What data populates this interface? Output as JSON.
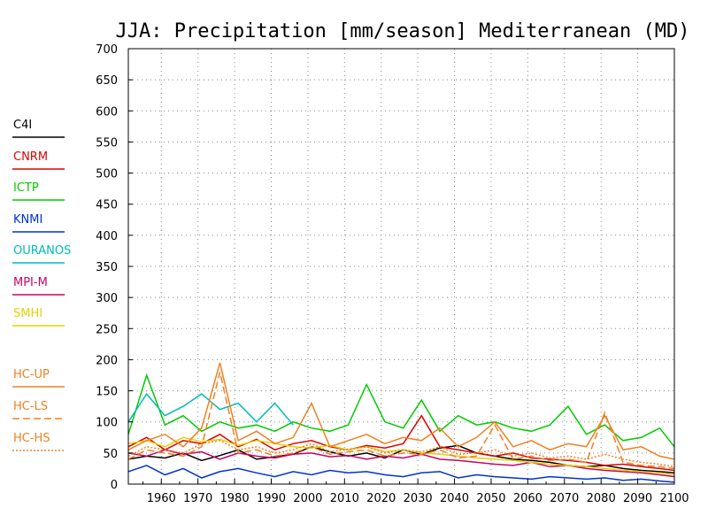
{
  "chart_data": {
    "type": "line",
    "title": "JJA: Precipitation [mm/season] Mediterranean (MD)",
    "xlabel": "",
    "ylabel": "",
    "xlim": [
      1951,
      2100
    ],
    "ylim": [
      0,
      700
    ],
    "x_ticks": [
      1960,
      1970,
      1980,
      1990,
      2000,
      2010,
      2020,
      2030,
      2040,
      2050,
      2060,
      2070,
      2080,
      2090,
      2100
    ],
    "y_ticks": [
      0,
      50,
      100,
      150,
      200,
      250,
      300,
      350,
      400,
      450,
      500,
      550,
      600,
      650,
      700
    ],
    "grid": true,
    "legend_position": "left",
    "series": [
      {
        "name": "C4I",
        "color": "#000000",
        "dash": "solid",
        "x": [
          1951,
          1956,
          1961,
          1966,
          1971,
          1976,
          1981,
          1986,
          1991,
          1996,
          2001,
          2006,
          2011,
          2016,
          2021,
          2026,
          2031,
          2036,
          2041,
          2046,
          2051,
          2056,
          2061,
          2066,
          2071,
          2076,
          2081,
          2086,
          2091,
          2096,
          2100
        ],
        "values": [
          40,
          45,
          42,
          50,
          38,
          46,
          55,
          40,
          44,
          48,
          60,
          52,
          45,
          50,
          42,
          55,
          48,
          58,
          62,
          50,
          45,
          40,
          38,
          35,
          30,
          28,
          30,
          25,
          22,
          20,
          18
        ]
      },
      {
        "name": "CNRM",
        "color": "#e00000",
        "dash": "solid",
        "x": [
          1951,
          1956,
          1961,
          1966,
          1971,
          1976,
          1981,
          1986,
          1991,
          1996,
          2001,
          2006,
          2011,
          2016,
          2021,
          2026,
          2031,
          2036,
          2041,
          2046,
          2051,
          2056,
          2061,
          2066,
          2071,
          2076,
          2081,
          2086,
          2091,
          2096,
          2100
        ],
        "values": [
          60,
          75,
          55,
          70,
          65,
          80,
          60,
          72,
          55,
          65,
          70,
          60,
          55,
          62,
          58,
          65,
          110,
          60,
          55,
          50,
          45,
          50,
          42,
          40,
          38,
          35,
          30,
          32,
          28,
          25,
          22
        ]
      },
      {
        "name": "ICTP",
        "color": "#00cc00",
        "dash": "solid",
        "x": [
          1951,
          1956,
          1961,
          1966,
          1971,
          1976,
          1981,
          1986,
          1991,
          1996,
          2001,
          2006,
          2011,
          2016,
          2021,
          2026,
          2031,
          2036,
          2041,
          2046,
          2051,
          2056,
          2061,
          2066,
          2071,
          2076,
          2081,
          2086,
          2091,
          2096,
          2100
        ],
        "values": [
          80,
          175,
          95,
          110,
          85,
          100,
          90,
          95,
          85,
          100,
          90,
          85,
          95,
          160,
          100,
          90,
          135,
          85,
          110,
          95,
          100,
          90,
          85,
          95,
          125,
          80,
          95,
          70,
          75,
          90,
          60
        ]
      },
      {
        "name": "KNMI",
        "color": "#0033cc",
        "dash": "solid",
        "x": [
          1951,
          1956,
          1961,
          1966,
          1971,
          1976,
          1981,
          1986,
          1991,
          1996,
          2001,
          2006,
          2011,
          2016,
          2021,
          2026,
          2031,
          2036,
          2041,
          2046,
          2051,
          2056,
          2061,
          2066,
          2071,
          2076,
          2081,
          2086,
          2091,
          2096,
          2100
        ],
        "values": [
          20,
          30,
          15,
          25,
          10,
          20,
          25,
          18,
          12,
          20,
          15,
          22,
          18,
          20,
          15,
          12,
          18,
          20,
          10,
          15,
          12,
          10,
          8,
          12,
          10,
          8,
          10,
          6,
          8,
          5,
          3
        ]
      },
      {
        "name": "OURANOS",
        "color": "#00bbbb",
        "dash": "solid",
        "x": [
          1951,
          1956,
          1961,
          1966,
          1971,
          1976,
          1981,
          1986,
          1991,
          1996
        ],
        "values": [
          100,
          145,
          110,
          125,
          145,
          120,
          130,
          100,
          130,
          95
        ]
      },
      {
        "name": "MPI-M",
        "color": "#cc0066",
        "dash": "solid",
        "x": [
          1951,
          1956,
          1961,
          1966,
          1971,
          1976,
          1981,
          1986,
          1991,
          1996,
          2001,
          2006,
          2011,
          2016,
          2021,
          2026,
          2031,
          2036,
          2041,
          2046,
          2051,
          2056,
          2061,
          2066,
          2071,
          2076,
          2081,
          2086,
          2091,
          2096,
          2100
        ],
        "values": [
          50,
          45,
          55,
          48,
          52,
          40,
          50,
          45,
          42,
          48,
          50,
          44,
          46,
          40,
          45,
          42,
          48,
          40,
          38,
          35,
          32,
          30,
          35,
          28,
          30,
          25,
          22,
          20,
          18,
          15,
          12
        ]
      },
      {
        "name": "SMHI",
        "color": "#e6d200",
        "dash": "solid",
        "x": [
          1951,
          1956,
          1961,
          1966,
          1971,
          1976,
          1981,
          1986,
          1991,
          1996,
          2001,
          2006,
          2011,
          2016,
          2021,
          2026,
          2031,
          2036,
          2041,
          2046,
          2051,
          2056,
          2061,
          2066,
          2071,
          2076,
          2081,
          2086,
          2091,
          2096,
          2100
        ],
        "values": [
          65,
          70,
          60,
          75,
          68,
          72,
          62,
          70,
          65,
          60,
          58,
          62,
          55,
          60,
          52,
          55,
          50,
          48,
          45,
          42,
          40,
          38,
          35,
          32,
          30,
          28,
          25,
          22,
          20,
          18,
          15
        ]
      },
      {
        "name": "HC-UP",
        "color": "#f08020",
        "dash": "solid",
        "x": [
          1951,
          1956,
          1961,
          1966,
          1971,
          1976,
          1981,
          1986,
          1991,
          1996,
          2001,
          2006,
          2011,
          2016,
          2021,
          2026,
          2031,
          2036,
          2041,
          2046,
          2051,
          2056,
          2061,
          2066,
          2071,
          2076,
          2081,
          2086,
          2091,
          2096,
          2100
        ],
        "values": [
          55,
          70,
          80,
          60,
          90,
          195,
          70,
          85,
          65,
          75,
          130,
          60,
          70,
          80,
          65,
          75,
          70,
          90,
          60,
          75,
          100,
          60,
          70,
          55,
          65,
          60,
          110,
          55,
          60,
          45,
          40
        ]
      },
      {
        "name": "HC-LS",
        "color": "#f08020",
        "dash": "dashed",
        "x": [
          1951,
          1956,
          1961,
          1966,
          1971,
          1976,
          1981,
          1986,
          1991,
          1996,
          2001,
          2006,
          2011,
          2016,
          2021,
          2026,
          2031,
          2036,
          2041,
          2046,
          2051,
          2056,
          2061,
          2066,
          2071,
          2076,
          2081,
          2086,
          2091,
          2096,
          2100
        ],
        "values": [
          40,
          55,
          50,
          45,
          60,
          180,
          50,
          55,
          45,
          50,
          60,
          48,
          52,
          55,
          45,
          50,
          48,
          55,
          42,
          45,
          95,
          40,
          45,
          38,
          40,
          35,
          115,
          35,
          30,
          28,
          25
        ]
      },
      {
        "name": "HC-HS",
        "color": "#f08020",
        "dash": "dotted",
        "x": [
          1951,
          1956,
          1961,
          1966,
          1971,
          1976,
          1981,
          1986,
          1991,
          1996,
          2001,
          2006,
          2011,
          2016,
          2021,
          2026,
          2031,
          2036,
          2041,
          2046,
          2051,
          2056,
          2061,
          2066,
          2071,
          2076,
          2081,
          2086,
          2091,
          2096,
          2100
        ],
        "values": [
          45,
          60,
          55,
          50,
          65,
          70,
          55,
          60,
          50,
          55,
          65,
          52,
          56,
          60,
          50,
          55,
          52,
          60,
          48,
          50,
          55,
          45,
          50,
          42,
          45,
          40,
          48,
          40,
          35,
          32,
          28
        ]
      }
    ]
  }
}
